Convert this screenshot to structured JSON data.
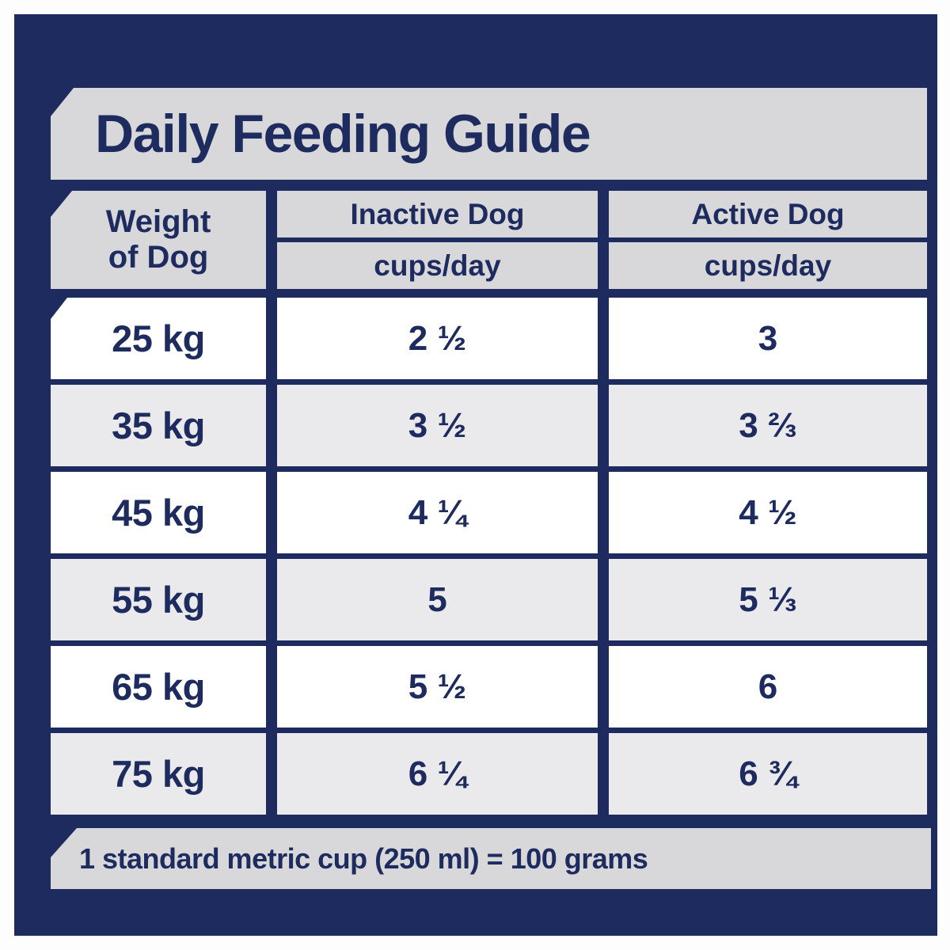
{
  "colors": {
    "background_navy": "#1d2b5e",
    "outer_border_white": "#fdfdfd",
    "banner_gray": "#d8d8da",
    "row_alt_gray": "#eaeaed",
    "row_white": "#ffffff",
    "text_navy": "#1d2b5e"
  },
  "title": "Daily Feeding Guide",
  "table": {
    "weight_header": {
      "line1": "Weight",
      "line2": "of Dog"
    },
    "columns": [
      {
        "label": "Inactive Dog",
        "sub": "cups/day"
      },
      {
        "label": "Active Dog",
        "sub": "cups/day"
      }
    ],
    "rows": [
      {
        "weight": "25 kg",
        "inactive": "2 ½",
        "active": "3"
      },
      {
        "weight": "35 kg",
        "inactive": "3 ½",
        "active": "3 ⅔"
      },
      {
        "weight": "45 kg",
        "inactive": "4 ¼",
        "active": "4 ½"
      },
      {
        "weight": "55 kg",
        "inactive": "5",
        "active": "5 ⅓"
      },
      {
        "weight": "65 kg",
        "inactive": "5 ½",
        "active": "6"
      },
      {
        "weight": "75 kg",
        "inactive": "6 ¼",
        "active": "6 ¾"
      }
    ]
  },
  "footer": {
    "note": "1 standard metric cup (250 ml) = 100 grams"
  }
}
